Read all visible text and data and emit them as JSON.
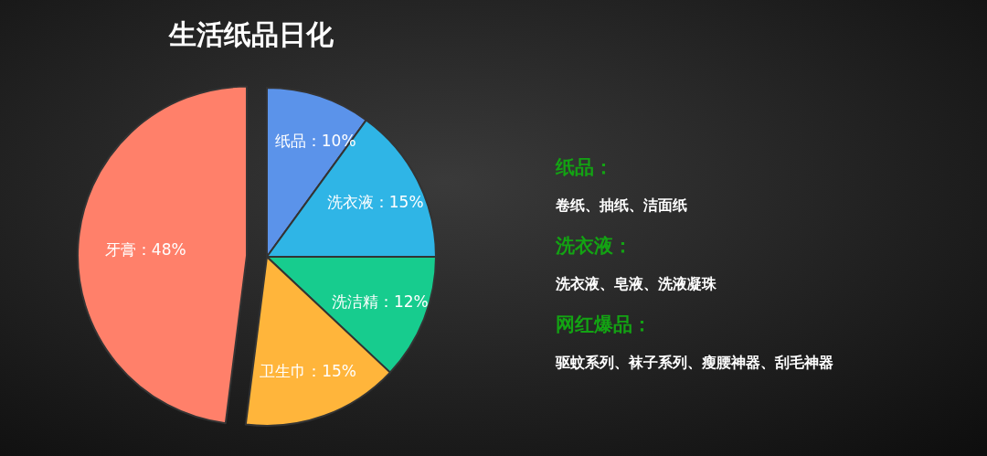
{
  "chart_data": {
    "type": "pie",
    "title": "生活纸品日化",
    "categories": [
      "纸品",
      "洗衣液",
      "洗洁精",
      "卫生巾",
      "牙膏"
    ],
    "values": [
      10,
      15,
      12,
      15,
      48
    ],
    "colors": [
      "#5b93ea",
      "#2fb5e6",
      "#17cc8e",
      "#ffb53b",
      "#ff806a"
    ],
    "value_labels": [
      "：10%",
      "：15%",
      "：12%",
      "：15%",
      "：48%"
    ],
    "annotations": [
      "纸品：",
      "卷纸、抽纸、洁面纸",
      "洗衣液：",
      "洗衣液、皂液、洗液凝珠",
      "网红爆品：",
      "驱蚊系列、袜子系列、瘦腰神器、刮毛神器"
    ]
  }
}
